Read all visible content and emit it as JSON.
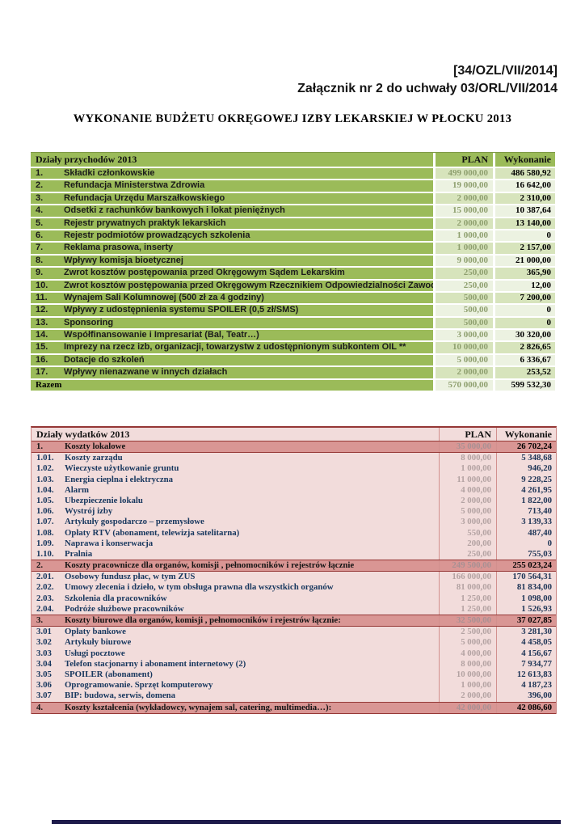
{
  "header": {
    "reference": "[34/OZL/VII/2014]",
    "attachment_line": "Załącznik nr 2 do uchwały 03/ORL/VII/2014",
    "title": "WYKONANIE BUDŻETU OKRĘGOWEJ IZBY LEKARSKIEJ W PŁOCKU 2013"
  },
  "income_table": {
    "header": {
      "label": "Działy przychodów 2013",
      "plan": "PLAN",
      "wyk": "Wykonanie"
    },
    "rows": [
      {
        "no": "1.",
        "label": "Składki członkowskie",
        "plan": "499 000,00",
        "wyk": "486 580,92"
      },
      {
        "no": "2.",
        "label": "Refundacja Ministerstwa Zdrowia",
        "plan": "19 000,00",
        "wyk": "16 642,00"
      },
      {
        "no": "3.",
        "label": "Refundacja Urzędu Marszałkowskiego",
        "plan": "2 000,00",
        "wyk": "2 310,00"
      },
      {
        "no": "4.",
        "label": "Odsetki z rachunków bankowych i lokat pieniężnych",
        "plan": "15 000,00",
        "wyk": "10 387,64"
      },
      {
        "no": "5.",
        "label": "Rejestr prywatnych praktyk lekarskich",
        "plan": "2 000,00",
        "wyk": "13 140,00"
      },
      {
        "no": "6.",
        "label": "Rejestr podmiotów prowadzących szkolenia",
        "plan": "1 000,00",
        "wyk": "0"
      },
      {
        "no": "7.",
        "label": "Reklama prasowa, inserty",
        "plan": "1 000,00",
        "wyk": "2 157,00"
      },
      {
        "no": "8.",
        "label": "Wpływy komisja bioetycznej",
        "plan": "9 000,00",
        "wyk": "21 000,00"
      },
      {
        "no": "9.",
        "label": "Zwrot kosztów postępowania przed Okręgowym Sądem Lekarskim",
        "plan": "250,00",
        "wyk": "365,90"
      },
      {
        "no": "10.",
        "label": "Zwrot kosztów postępowania przed Okręgowym Rzecznikiem Odpowiedzialności Zawodowej",
        "plan": "250,00",
        "wyk": "12,00"
      },
      {
        "no": "11.",
        "label": "Wynajem Sali Kolumnowej (500 zł za 4 godziny)",
        "plan": "500,00",
        "wyk": "7 200,00"
      },
      {
        "no": "12.",
        "label": "Wpływy z udostępnienia systemu SPOILER (0,5 zł/SMS)",
        "plan": "500,00",
        "wyk": "0"
      },
      {
        "no": "13.",
        "label": "Sponsoring",
        "plan": "500,00",
        "wyk": "0"
      },
      {
        "no": "14.",
        "label": "Współfinansowanie i Impresariat (Bal, Teatr…)",
        "plan": "3 000,00",
        "wyk": "30 320,00"
      },
      {
        "no": "15.",
        "label": "Imprezy na rzecz izb, organizacji, towarzystw z udostępnionym subkontem  OIL **",
        "plan": "10 000,00",
        "wyk": "2 826,65"
      },
      {
        "no": "16.",
        "label": "Dotacje do szkoleń",
        "plan": "5 000,00",
        "wyk": "6 336,67"
      },
      {
        "no": "17.",
        "label": "Wpływy nienazwane w innych działach",
        "plan": "2 000,00",
        "wyk": "253,52"
      }
    ],
    "total": {
      "label": "Razem",
      "plan": "570 000,00",
      "wyk": "599 532,30"
    }
  },
  "expense_table": {
    "header": {
      "label": "Działy wydatków 2013",
      "plan": "PLAN",
      "wyk": "Wykonanie"
    },
    "rows": [
      {
        "type": "section",
        "no": "1.",
        "label": "Koszty lokalowe",
        "plan": "35 000,00",
        "wyk": "26 702,24"
      },
      {
        "type": "sub",
        "no": "1.01.",
        "label": "Koszty zarządu",
        "plan": "8 000,00",
        "wyk": "5 348,68"
      },
      {
        "type": "sub",
        "no": "1.02.",
        "label": "Wieczyste użytkowanie gruntu",
        "plan": "1 000,00",
        "wyk": "946,20"
      },
      {
        "type": "sub",
        "no": "1.03.",
        "label": "Energia cieplna i elektryczna",
        "plan": "11 000,00",
        "wyk": "9 228,25"
      },
      {
        "type": "sub",
        "no": "1.04.",
        "label": "Alarm",
        "plan": "4 000,00",
        "wyk": "4 261,95"
      },
      {
        "type": "sub",
        "no": "1.05.",
        "label": "Ubezpieczenie lokalu",
        "plan": "2 000,00",
        "wyk": "1 822,00"
      },
      {
        "type": "sub",
        "no": "1.06.",
        "label": "Wystrój izby",
        "plan": "5 000,00",
        "wyk": "713,40"
      },
      {
        "type": "sub",
        "no": "1.07.",
        "label": "Artykuły  gospodarczo – przemysłowe",
        "plan": "3 000,00",
        "wyk": "3 139,33"
      },
      {
        "type": "sub",
        "no": "1.08.",
        "label": "Opłaty RTV (abonament, telewizja satelitarna)",
        "plan": "550,00",
        "wyk": "487,40"
      },
      {
        "type": "sub",
        "no": "1.09.",
        "label": "Naprawa i konserwacja",
        "plan": "200,00",
        "wyk": "0"
      },
      {
        "type": "sub",
        "no": "1.10.",
        "label": "Pralnia",
        "plan": "250,00",
        "wyk": "755,03"
      },
      {
        "type": "section",
        "no": "2.",
        "label": "Koszty pracownicze dla organów, komisji , pełnomocników i rejestrów łącznie",
        "plan": "249 500,00",
        "wyk": "255 023,24"
      },
      {
        "type": "sub",
        "no": "2.01.",
        "label": "Osobowy fundusz płac, w tym ZUS",
        "plan": "166 000,00",
        "wyk": "170 564,31"
      },
      {
        "type": "sub",
        "no": "2.02.",
        "label": "Umowy zlecenia i dzieło, w tym obsługa prawna dla wszystkich organów",
        "plan": "81 000,00",
        "wyk": "81 834,00"
      },
      {
        "type": "sub",
        "no": "2.03.",
        "label": "Szkolenia dla pracowników",
        "plan": "1 250,00",
        "wyk": "1 098,00"
      },
      {
        "type": "sub",
        "no": "2.04.",
        "label": "Podróże służbowe pracowników",
        "plan": "1 250,00",
        "wyk": "1 526,93"
      },
      {
        "type": "section",
        "no": "3.",
        "label": "Koszty biurowe dla organów, komisji , pełnomocników i rejestrów łącznie:",
        "plan": "32 500,00",
        "wyk": "37 027,85"
      },
      {
        "type": "sub",
        "no": "3.01",
        "label": "Opłaty bankowe",
        "plan": "2 500,00",
        "wyk": "3 281,30"
      },
      {
        "type": "sub",
        "no": "3.02",
        "label": "Artykuły biurowe",
        "plan": "5 000,00",
        "wyk": "4 458,05"
      },
      {
        "type": "sub",
        "no": "3.03",
        "label": "Usługi pocztowe",
        "plan": "4 000,00",
        "wyk": "4 156,67"
      },
      {
        "type": "sub",
        "no": "3.04",
        "label": "Telefon stacjonarny i abonament internetowy (2)",
        "plan": "8 000,00",
        "wyk": "7 934,77"
      },
      {
        "type": "sub",
        "no": "3.05",
        "label": "SPOILER (abonament)",
        "plan": "10 000,00",
        "wyk": "12 613,83"
      },
      {
        "type": "sub",
        "no": "3.06",
        "label": "Oprogramowanie. Sprzęt komputerowy",
        "plan": "1 000,00",
        "wyk": "4 187,23"
      },
      {
        "type": "sub",
        "no": "3.07",
        "label": "BIP: budowa, serwis, domena",
        "plan": "2 000,00",
        "wyk": "396,00"
      },
      {
        "type": "section",
        "no": "4.",
        "label": "Koszty kształcenia (wykładowcy, wynajem sal, catering, multimedia…):",
        "plan": "42 000,00",
        "wyk": "42 086,60"
      }
    ]
  },
  "colors": {
    "income_header_bg": "#9bbb59",
    "income_band_light": "#d7e4bc",
    "income_band_pale": "#ecf2e1",
    "expense_header_bg": "#f2dcdb",
    "expense_section_bg": "#d99694",
    "expense_border_dark": "#953735",
    "expense_sub_text": "#17375e",
    "continuation_bar": "#1e1b4b"
  }
}
